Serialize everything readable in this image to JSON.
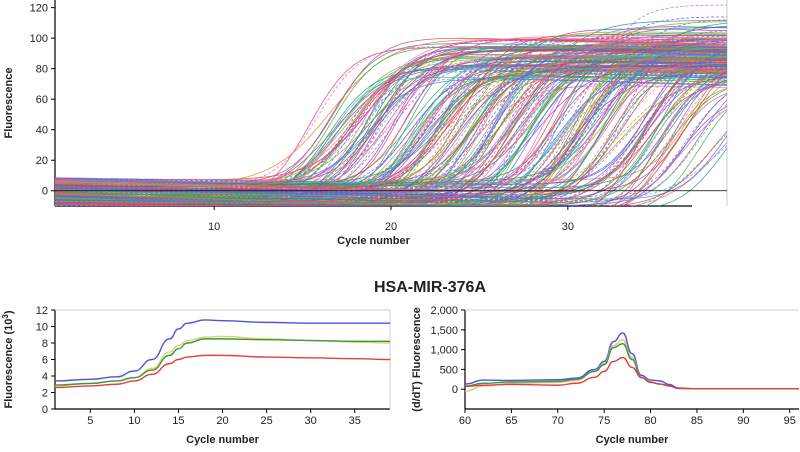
{
  "chart_data": [
    {
      "type": "line",
      "title": "",
      "xlabel": "Cycle number",
      "ylabel": "Fluorescence",
      "xlim": [
        1,
        39
      ],
      "ylim": [
        -10,
        125
      ],
      "xticks": [
        10,
        20,
        30
      ],
      "yticks": [
        0,
        20,
        40,
        60,
        80,
        100,
        120
      ],
      "grid": false,
      "legend": "none",
      "description_of_series": "many amplification curves (sigmoids) characterised by threshold cycle and plateau",
      "series": [
        {
          "ct": 14.5,
          "plateau": 97
        },
        {
          "ct": 15,
          "plateau": 95
        },
        {
          "ct": 15.5,
          "plateau": 96
        },
        {
          "ct": 16,
          "plateau": 94
        },
        {
          "ct": 16.5,
          "plateau": 97
        },
        {
          "ct": 17,
          "plateau": 93
        },
        {
          "ct": 17.5,
          "plateau": 95
        },
        {
          "ct": 18,
          "plateau": 96
        },
        {
          "ct": 18.5,
          "plateau": 92
        },
        {
          "ct": 19,
          "plateau": 95
        },
        {
          "ct": 19.5,
          "plateau": 97
        },
        {
          "ct": 20,
          "plateau": 94
        },
        {
          "ct": 20.5,
          "plateau": 96
        },
        {
          "ct": 21,
          "plateau": 93
        },
        {
          "ct": 21.5,
          "plateau": 98
        },
        {
          "ct": 22,
          "plateau": 95
        },
        {
          "ct": 22.5,
          "plateau": 100
        },
        {
          "ct": 23,
          "plateau": 96
        },
        {
          "ct": 23.5,
          "plateau": 102
        },
        {
          "ct": 24,
          "plateau": 98
        },
        {
          "ct": 24.5,
          "plateau": 104
        },
        {
          "ct": 25,
          "plateau": 97
        },
        {
          "ct": 25.5,
          "plateau": 106
        },
        {
          "ct": 26,
          "plateau": 100
        },
        {
          "ct": 26.5,
          "plateau": 108
        },
        {
          "ct": 27,
          "plateau": 99
        },
        {
          "ct": 27.5,
          "plateau": 110
        },
        {
          "ct": 28,
          "plateau": 101
        },
        {
          "ct": 28.5,
          "plateau": 105
        },
        {
          "ct": 29,
          "plateau": 97
        },
        {
          "ct": 29.5,
          "plateau": 112
        },
        {
          "ct": 30,
          "plateau": 100
        },
        {
          "ct": 30.5,
          "plateau": 108
        },
        {
          "ct": 31,
          "plateau": 96
        },
        {
          "ct": 31.5,
          "plateau": 104
        },
        {
          "ct": 32,
          "plateau": 95
        },
        {
          "ct": 32.5,
          "plateau": 102
        },
        {
          "ct": 33,
          "plateau": 92
        },
        {
          "ct": 33.5,
          "plateau": 98
        },
        {
          "ct": 34,
          "plateau": 90
        },
        {
          "ct": 35,
          "plateau": 88
        },
        {
          "ct": 36,
          "plateau": 85
        }
      ],
      "colors": [
        "#e0408a",
        "#3a7be0",
        "#40b040",
        "#e08030",
        "#9040d0",
        "#30c0c0",
        "#e04040",
        "#a0a020",
        "#ff66aa",
        "#6060ff",
        "#20a070",
        "#c060c0"
      ]
    },
    {
      "type": "line",
      "title": "HSA-MIR-376A",
      "xlabel": "Cycle number",
      "ylabel": "Fluorescence (10",
      "ylabel_sup": "3",
      "ylabel_end": ")",
      "xlim": [
        1,
        39
      ],
      "ylim": [
        0,
        12
      ],
      "xticks": [
        5,
        10,
        15,
        20,
        25,
        30,
        35
      ],
      "yticks": [
        0,
        2,
        4,
        6,
        8,
        10,
        12
      ],
      "grid": false,
      "legend": "none",
      "x": [
        1,
        5,
        8,
        10,
        12,
        14,
        15,
        16,
        18,
        20,
        25,
        30,
        35,
        39
      ],
      "series": [
        {
          "color": "#5050e0",
          "values": [
            3.4,
            3.6,
            3.9,
            4.6,
            6.0,
            8.5,
            9.7,
            10.4,
            10.8,
            10.7,
            10.5,
            10.4,
            10.4,
            10.4
          ]
        },
        {
          "color": "#e0d070",
          "values": [
            2.8,
            3.1,
            3.4,
            3.8,
            4.9,
            6.9,
            7.7,
            8.3,
            8.7,
            8.8,
            8.5,
            8.3,
            8.1,
            8.0
          ]
        },
        {
          "color": "#3a9a3a",
          "values": [
            2.9,
            3.1,
            3.4,
            3.8,
            4.7,
            6.5,
            7.3,
            8.0,
            8.5,
            8.5,
            8.4,
            8.3,
            8.2,
            8.2
          ]
        },
        {
          "color": "#e04040",
          "values": [
            2.6,
            2.8,
            3.0,
            3.4,
            4.2,
            5.5,
            6.0,
            6.3,
            6.5,
            6.5,
            6.3,
            6.2,
            6.1,
            6.0
          ]
        }
      ]
    },
    {
      "type": "line",
      "title": "",
      "xlabel": "Cycle number",
      "ylabel": "(d/dT) Fluorescence",
      "xlim": [
        60,
        96
      ],
      "ylim": [
        -500,
        2000
      ],
      "xticks": [
        60,
        65,
        70,
        75,
        80,
        85,
        90,
        95
      ],
      "yticks": [
        0,
        500,
        1000,
        1500,
        2000
      ],
      "ytick_labels": [
        "0",
        "500",
        "1,000",
        "1,500",
        "2,000"
      ],
      "grid": false,
      "legend": "none",
      "x": [
        60,
        62,
        65,
        70,
        72,
        74,
        75,
        76,
        77,
        78,
        79,
        80,
        81,
        82,
        83,
        85,
        96
      ],
      "series": [
        {
          "color": "#5050e0",
          "values": [
            130,
            230,
            220,
            240,
            280,
            500,
            700,
            1200,
            1420,
            900,
            350,
            230,
            210,
            120,
            30,
            10,
            10
          ]
        },
        {
          "color": "#e0c080",
          "values": [
            -50,
            80,
            150,
            170,
            220,
            450,
            650,
            1100,
            1250,
            800,
            300,
            180,
            130,
            80,
            20,
            10,
            10
          ]
        },
        {
          "color": "#3a9a3a",
          "values": [
            80,
            150,
            180,
            200,
            250,
            450,
            620,
            1050,
            1150,
            750,
            290,
            180,
            130,
            80,
            20,
            10,
            10
          ]
        },
        {
          "color": "#e04040",
          "values": [
            70,
            100,
            120,
            100,
            150,
            300,
            450,
            700,
            800,
            550,
            300,
            170,
            130,
            90,
            20,
            10,
            10
          ]
        }
      ]
    }
  ]
}
